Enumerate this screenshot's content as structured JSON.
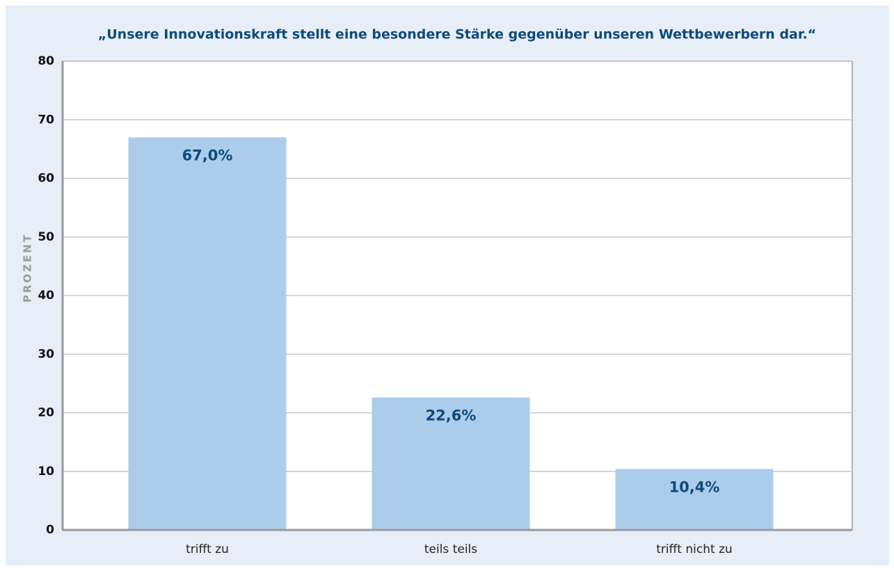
{
  "chart_data": {
    "type": "bar",
    "title": "„Unsere Innovationskraft stellt eine besondere Stärke gegenüber unseren Wettbewerbern dar.“",
    "y_label": "PROZENT",
    "categories": [
      "trifft zu",
      "teils teils",
      "trifft nicht zu"
    ],
    "values": [
      67.0,
      22.6,
      10.4
    ],
    "value_labels": [
      "67,0%",
      "22,6%",
      "10,4%"
    ],
    "color": "#abcdeb",
    "ylim": [
      0,
      80
    ],
    "yticks": [
      0,
      10,
      20,
      30,
      40,
      50,
      60,
      70,
      80
    ],
    "grid": true
  }
}
